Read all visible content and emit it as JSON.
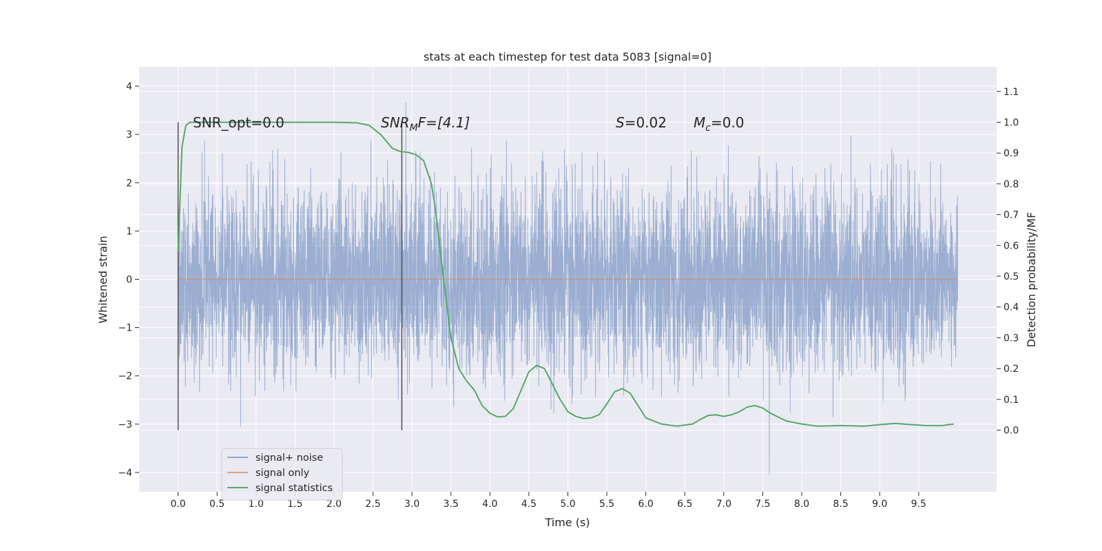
{
  "chart_data": {
    "type": "line",
    "title": "stats at each timestep for test data 5083 [signal=0]",
    "xlabel": "Time (s)",
    "ylabel": "Whitened strain",
    "y2label": "Detection probability/MF",
    "xlim": [
      -0.5,
      10.5
    ],
    "ylim": [
      -4.4,
      4.4
    ],
    "y2lim": [
      -0.2,
      1.18
    ],
    "x_ticks": [
      0.0,
      0.5,
      1.0,
      1.5,
      2.0,
      2.5,
      3.0,
      3.5,
      4.0,
      4.5,
      5.0,
      5.5,
      6.0,
      6.5,
      7.0,
      7.5,
      8.0,
      8.5,
      9.0,
      9.5
    ],
    "x_tick_labels": [
      "0.0",
      "0.5",
      "1.0",
      "1.5",
      "2.0",
      "2.5",
      "3.0",
      "3.5",
      "4.0",
      "4.5",
      "5.0",
      "5.5",
      "6.0",
      "6.5",
      "7.0",
      "7.5",
      "8.0",
      "8.5",
      "9.0",
      "9.5"
    ],
    "y_ticks": [
      4,
      3,
      2,
      1,
      0,
      -1,
      -2,
      -3,
      -4
    ],
    "y_tick_labels": [
      "4",
      "3",
      "2",
      "1",
      "0",
      "−1",
      "−2",
      "−3",
      "−4"
    ],
    "y2_ticks": [
      1.1,
      1.0,
      0.9,
      0.8,
      0.7,
      0.6,
      0.5,
      0.4,
      0.3,
      0.2,
      0.1,
      0.0
    ],
    "y2_tick_labels": [
      "1.1",
      "1.0",
      "0.9",
      "0.8",
      "0.7",
      "0.6",
      "0.5",
      "0.4",
      "0.3",
      "0.2",
      "0.1",
      "0.0"
    ],
    "grid": true,
    "legend_position": "lower-left",
    "annotations": {
      "snr_opt": "SNR_opt=0.0",
      "snr_mf_base": "SNR",
      "snr_mf_sub": "M",
      "snr_mf_rest": "F=[4.1]",
      "s_label": "S",
      "s_value": "=0.02",
      "mc_label": "M",
      "mc_sub": "c",
      "mc_value": "=0.0"
    },
    "vlines_x": [
      0.0,
      2.87
    ],
    "series": [
      {
        "name": "signal+ noise",
        "color": "#4c72b0",
        "kind": "noise",
        "x_range": [
          0.0,
          10.0
        ],
        "y_min": -4.05,
        "y_max": 4.05
      },
      {
        "name": "signal only",
        "color": "#dd8452",
        "x": [
          0.0,
          10.0
        ],
        "y": [
          0.0,
          0.0
        ]
      },
      {
        "name": "signal statistics",
        "color": "#55a868",
        "axis": "right",
        "x": [
          0.0,
          0.05,
          0.1,
          0.15,
          0.25,
          0.5,
          1.0,
          1.5,
          2.0,
          2.3,
          2.45,
          2.6,
          2.75,
          2.85,
          2.95,
          3.05,
          3.15,
          3.25,
          3.3,
          3.4,
          3.5,
          3.6,
          3.7,
          3.8,
          3.9,
          4.0,
          4.1,
          4.2,
          4.3,
          4.4,
          4.5,
          4.6,
          4.7,
          4.8,
          4.9,
          5.0,
          5.1,
          5.2,
          5.3,
          5.4,
          5.5,
          5.6,
          5.7,
          5.8,
          5.9,
          6.0,
          6.2,
          6.4,
          6.6,
          6.7,
          6.8,
          6.9,
          7.0,
          7.1,
          7.2,
          7.3,
          7.4,
          7.5,
          7.6,
          7.8,
          8.0,
          8.2,
          8.5,
          8.8,
          9.0,
          9.2,
          9.4,
          9.6,
          9.8,
          9.95
        ],
        "y": [
          0.58,
          0.92,
          0.99,
          1.0,
          1.0,
          1.0,
          1.0,
          1.0,
          1.0,
          0.998,
          0.99,
          0.96,
          0.915,
          0.905,
          0.902,
          0.895,
          0.875,
          0.8,
          0.72,
          0.5,
          0.3,
          0.2,
          0.16,
          0.13,
          0.08,
          0.055,
          0.043,
          0.045,
          0.07,
          0.13,
          0.19,
          0.21,
          0.2,
          0.15,
          0.1,
          0.06,
          0.045,
          0.038,
          0.04,
          0.05,
          0.085,
          0.125,
          0.135,
          0.12,
          0.08,
          0.04,
          0.02,
          0.013,
          0.02,
          0.035,
          0.048,
          0.05,
          0.045,
          0.05,
          0.06,
          0.075,
          0.08,
          0.072,
          0.055,
          0.03,
          0.02,
          0.013,
          0.015,
          0.013,
          0.018,
          0.022,
          0.018,
          0.015,
          0.015,
          0.02
        ]
      }
    ]
  }
}
